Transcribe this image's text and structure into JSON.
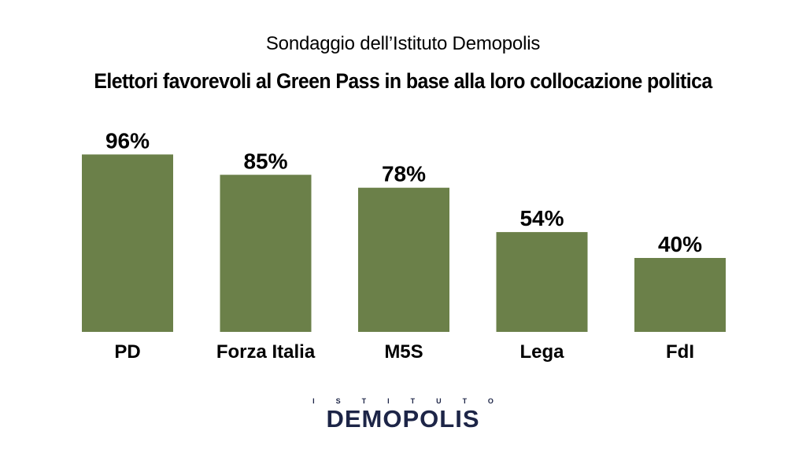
{
  "header": {
    "subtitle": "Sondaggio dell’Istituto Demopolis",
    "title": "Elettori favorevoli al Green Pass in base alla loro collocazione politica"
  },
  "chart_data": {
    "type": "bar",
    "title": "Elettori favorevoli al Green Pass in base alla loro collocazione politica",
    "subtitle": "Sondaggio dell’Istituto Demopolis",
    "categories": [
      "PD",
      "Forza Italia",
      "M5S",
      "Lega",
      "FdI"
    ],
    "values": [
      96,
      85,
      78,
      54,
      40
    ],
    "value_labels": [
      "96%",
      "85%",
      "78%",
      "54%",
      "40%"
    ],
    "unit": "%",
    "ylim": [
      0,
      100
    ],
    "grid": false,
    "legend": "none",
    "bar_color": "#6b8049"
  },
  "logo": {
    "top": "ISTITUTO",
    "main": "DEMOPOLIS"
  }
}
